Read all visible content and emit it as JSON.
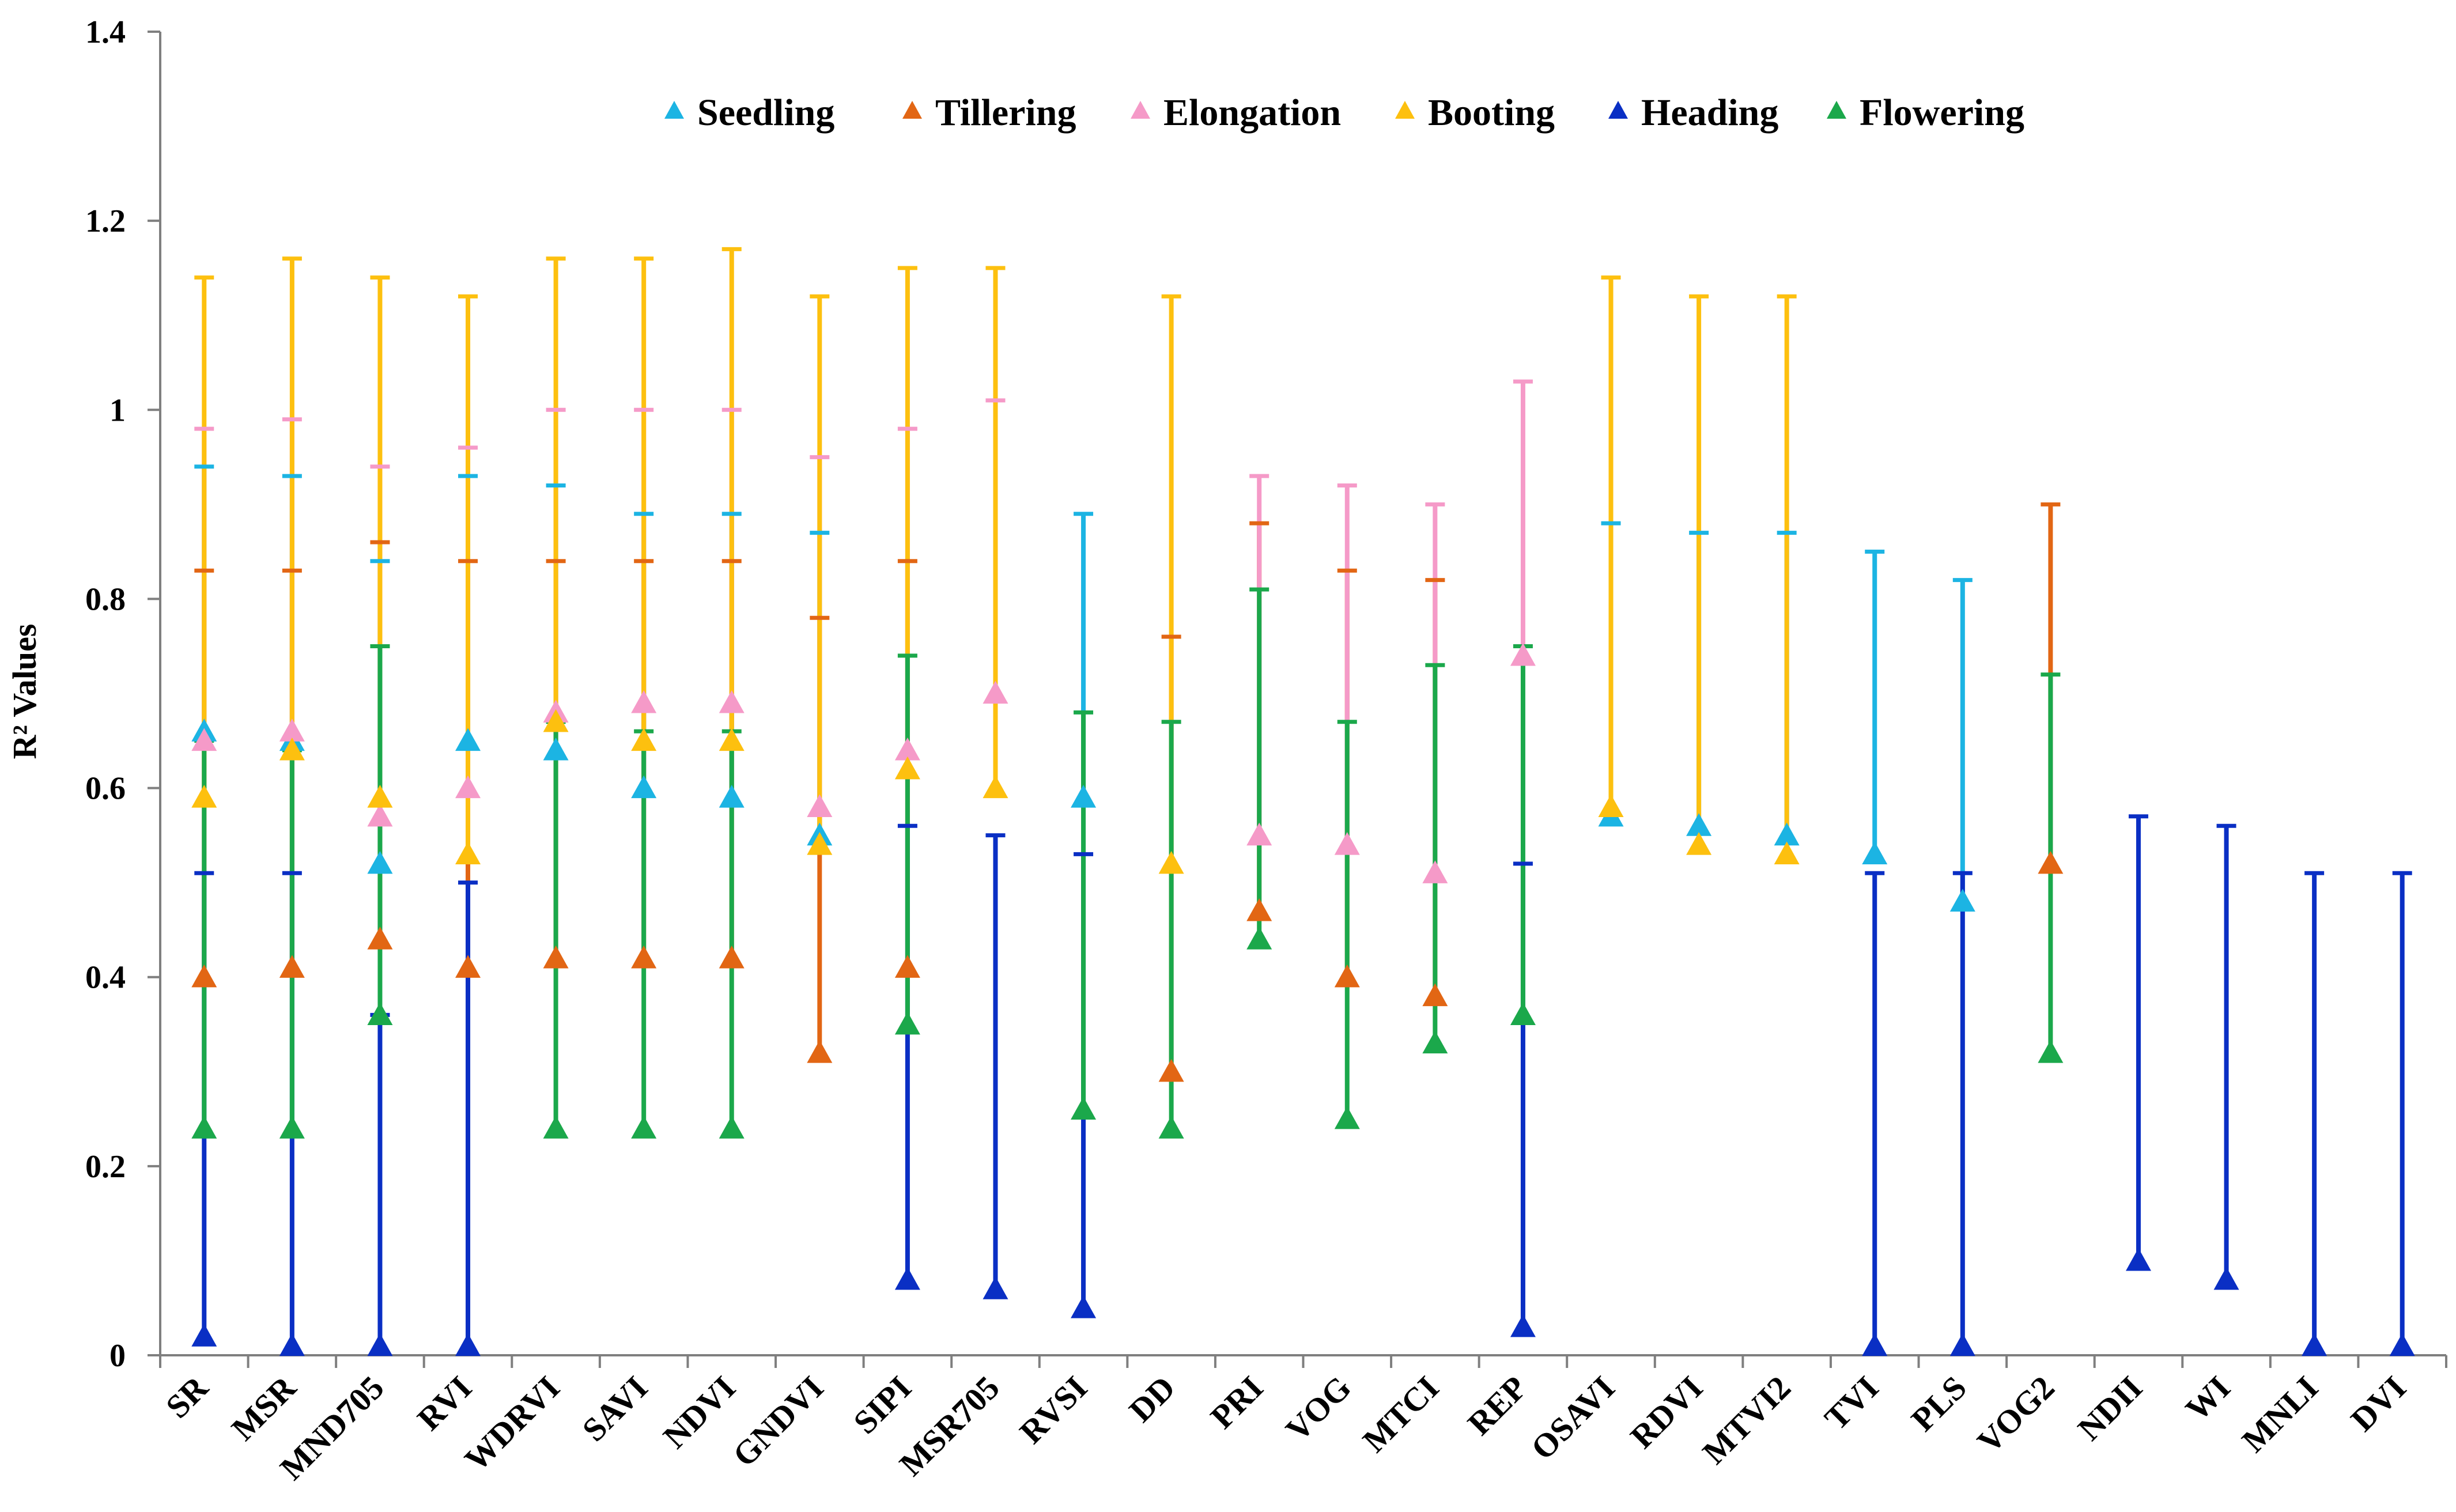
{
  "chart_data": {
    "type": "scatter",
    "title": "",
    "xlabel": "",
    "ylabel": "R² Values",
    "ylim": [
      0,
      1.4
    ],
    "yticks": [
      0,
      0.2,
      0.4,
      0.6,
      0.8,
      1,
      1.2,
      1.4
    ],
    "ytick_labels": [
      "0",
      "0.2",
      "0.4",
      "0.6",
      "0.8",
      "1",
      "1.2",
      "1.4"
    ],
    "grid": false,
    "legend_position": "top",
    "categories": [
      "SR",
      "MSR",
      "MND705",
      "RVI",
      "WDRVI",
      "SAVI",
      "NDVI",
      "GNDVI",
      "SIPI",
      "MSR705",
      "RVSI",
      "DD",
      "PRI",
      "VOG",
      "MTCI",
      "REP",
      "OSAVI",
      "RDVI",
      "MTVI2",
      "TVI",
      "PLS",
      "VOG2",
      "NDII",
      "WI",
      "MNLI",
      "DVI"
    ],
    "series": [
      {
        "name": "Seedling",
        "color": "#1CB4E3",
        "values": [
          0.66,
          0.65,
          0.52,
          0.65,
          0.64,
          0.6,
          0.59,
          0.55,
          null,
          null,
          0.59,
          null,
          null,
          null,
          null,
          null,
          0.57,
          0.56,
          0.55,
          0.53,
          0.48,
          null,
          null,
          null,
          null,
          null
        ],
        "upper": [
          0.94,
          0.93,
          0.84,
          0.93,
          0.92,
          0.89,
          0.89,
          0.87,
          null,
          null,
          0.89,
          null,
          null,
          null,
          null,
          null,
          0.88,
          0.87,
          0.87,
          0.85,
          0.82,
          null,
          null,
          null,
          null,
          null
        ]
      },
      {
        "name": "Tillering",
        "color": "#E26614",
        "values": [
          0.4,
          0.41,
          0.44,
          0.41,
          0.42,
          0.42,
          0.42,
          0.32,
          0.41,
          null,
          null,
          0.3,
          0.47,
          0.4,
          0.38,
          null,
          null,
          null,
          null,
          null,
          null,
          0.52,
          null,
          null,
          null,
          null
        ],
        "upper": [
          0.83,
          0.83,
          0.86,
          0.84,
          0.84,
          0.84,
          0.84,
          0.78,
          0.84,
          null,
          null,
          0.76,
          0.88,
          0.83,
          0.82,
          null,
          null,
          null,
          null,
          null,
          null,
          0.9,
          null,
          null,
          null,
          null
        ]
      },
      {
        "name": "Elongation",
        "color": "#F59AC8",
        "values": [
          0.65,
          0.66,
          0.57,
          0.6,
          0.68,
          0.69,
          0.69,
          0.58,
          0.64,
          0.7,
          null,
          null,
          0.55,
          0.54,
          0.51,
          0.74,
          null,
          null,
          null,
          null,
          null,
          null,
          null,
          null,
          null,
          null
        ],
        "upper": [
          0.98,
          0.99,
          0.94,
          0.96,
          1.0,
          1.0,
          1.0,
          0.95,
          0.98,
          1.01,
          null,
          null,
          0.93,
          0.92,
          0.9,
          1.03,
          null,
          null,
          null,
          null,
          null,
          null,
          null,
          null,
          null,
          null
        ]
      },
      {
        "name": "Booting",
        "color": "#FDC00F",
        "values": [
          0.59,
          0.64,
          0.59,
          0.53,
          0.67,
          0.65,
          0.65,
          0.54,
          0.62,
          0.6,
          null,
          0.52,
          null,
          null,
          null,
          null,
          0.58,
          0.54,
          0.53,
          null,
          null,
          null,
          null,
          null,
          null,
          null
        ],
        "upper": [
          1.14,
          1.16,
          1.14,
          1.12,
          1.16,
          1.16,
          1.17,
          1.12,
          1.15,
          1.15,
          null,
          1.12,
          null,
          null,
          null,
          null,
          1.14,
          1.12,
          1.12,
          null,
          null,
          null,
          null,
          null,
          null,
          null
        ]
      },
      {
        "name": "Heading",
        "color": "#0A2FC4",
        "values": [
          0.02,
          0.01,
          0.01,
          0.01,
          null,
          null,
          null,
          null,
          0.08,
          0.07,
          0.05,
          null,
          null,
          null,
          null,
          0.03,
          null,
          null,
          null,
          0.01,
          0.01,
          null,
          0.1,
          0.08,
          0.01,
          0.01
        ],
        "upper": [
          0.51,
          0.51,
          0.36,
          0.5,
          null,
          null,
          null,
          null,
          0.56,
          0.55,
          0.53,
          null,
          null,
          null,
          null,
          0.52,
          null,
          null,
          null,
          0.51,
          0.51,
          null,
          0.57,
          0.56,
          0.51,
          0.51
        ]
      },
      {
        "name": "Flowering",
        "color": "#1BA84B",
        "values": [
          0.24,
          0.24,
          0.36,
          null,
          0.24,
          0.24,
          0.24,
          null,
          0.35,
          null,
          0.26,
          0.24,
          0.44,
          0.25,
          0.33,
          0.36,
          null,
          null,
          null,
          null,
          null,
          0.32,
          null,
          null,
          null,
          null
        ],
        "upper": [
          0.65,
          0.64,
          0.75,
          null,
          0.67,
          0.66,
          0.66,
          null,
          0.74,
          null,
          0.68,
          0.67,
          0.81,
          0.67,
          0.73,
          0.75,
          null,
          null,
          null,
          null,
          null,
          0.72,
          null,
          null,
          null,
          null
        ]
      }
    ]
  }
}
